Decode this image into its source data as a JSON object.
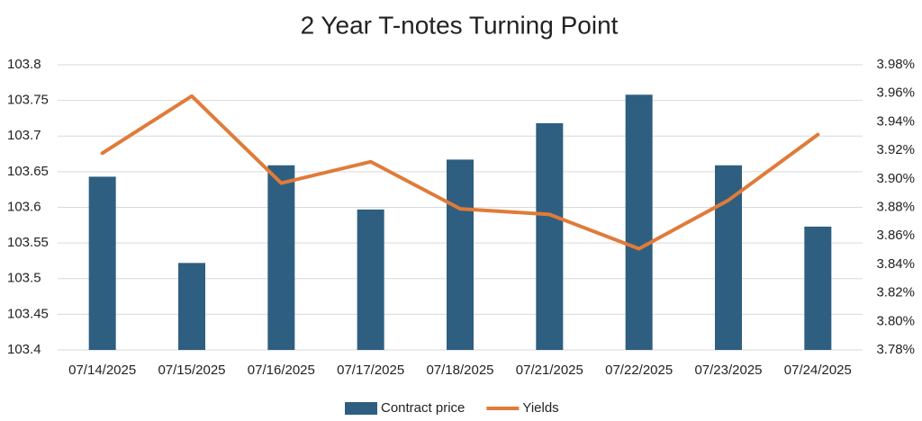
{
  "chart_data": {
    "type": "bar-line",
    "title": "2 Year T-notes Turning Point",
    "categories": [
      "07/14/2025",
      "07/15/2025",
      "07/16/2025",
      "07/17/2025",
      "07/18/2025",
      "07/21/2025",
      "07/22/2025",
      "07/23/2025",
      "07/24/2025"
    ],
    "series": [
      {
        "name": "Contract price",
        "type": "bar",
        "color": "#2e5f80",
        "values": [
          103.643,
          103.522,
          103.659,
          103.597,
          103.667,
          103.718,
          103.758,
          103.659,
          103.573
        ]
      },
      {
        "name": "Yields",
        "type": "line",
        "axis": "y2",
        "color": "#e07b39",
        "values": [
          3.918,
          3.958,
          3.897,
          3.912,
          3.879,
          3.875,
          3.851,
          3.885,
          3.931
        ]
      }
    ],
    "ylim": [
      103.4,
      103.8
    ],
    "yticks": [
      103.4,
      103.45,
      103.5,
      103.55,
      103.6,
      103.65,
      103.7,
      103.75,
      103.8
    ],
    "y2lim": [
      3.78,
      3.98
    ],
    "y2ticks": [
      {
        "value": 3.78,
        "label": "3.78%"
      },
      {
        "value": 3.8,
        "label": "3.80%"
      },
      {
        "value": 3.82,
        "label": "3.82%"
      },
      {
        "value": 3.84,
        "label": "3.84%"
      },
      {
        "value": 3.86,
        "label": "3.86%"
      },
      {
        "value": 3.88,
        "label": "3.88%"
      },
      {
        "value": 3.9,
        "label": "3.90%"
      },
      {
        "value": 3.92,
        "label": "3.92%"
      },
      {
        "value": 3.94,
        "label": "3.94%"
      },
      {
        "value": 3.96,
        "label": "3.96%"
      },
      {
        "value": 3.98,
        "label": "3.98%"
      }
    ],
    "grid": true,
    "legend": "bottom"
  }
}
